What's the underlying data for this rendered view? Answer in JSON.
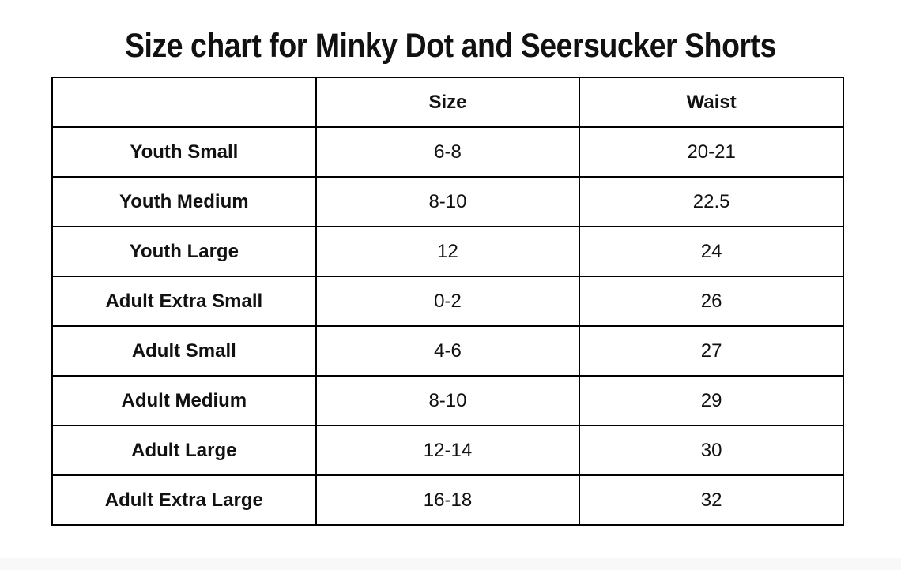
{
  "title": "Size chart for Minky Dot and Seersucker Shorts",
  "colors": {
    "background": "#ffffff",
    "text": "#111111",
    "table_border": "#000000",
    "footer_strip": "#f8f8f8"
  },
  "table": {
    "columns": [
      "",
      "Size",
      "Waist"
    ],
    "rows": [
      {
        "label": "Youth Small",
        "size": "6-8",
        "waist": "20-21"
      },
      {
        "label": "Youth Medium",
        "size": "8-10",
        "waist": "22.5"
      },
      {
        "label": "Youth Large",
        "size": "12",
        "waist": "24"
      },
      {
        "label": "Adult Extra Small",
        "size": "0-2",
        "waist": "26"
      },
      {
        "label": "Adult Small",
        "size": "4-6",
        "waist": "27"
      },
      {
        "label": "Adult Medium",
        "size": "8-10",
        "waist": "29"
      },
      {
        "label": "Adult Large",
        "size": "12-14",
        "waist": "30"
      },
      {
        "label": "Adult Extra Large",
        "size": "16-18",
        "waist": "32"
      }
    ]
  }
}
